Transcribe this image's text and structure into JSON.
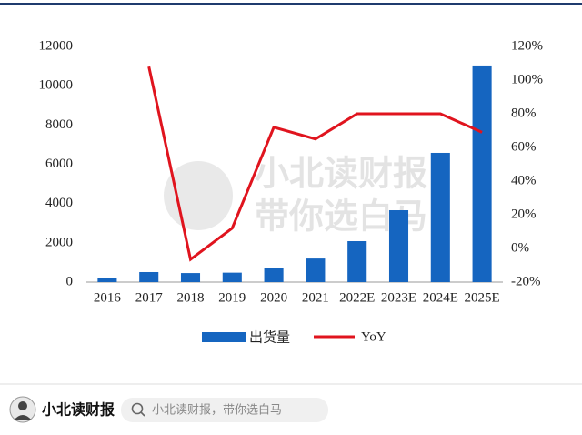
{
  "chart_data": {
    "type": "bar",
    "categories": [
      "2016",
      "2017",
      "2018",
      "2019",
      "2020",
      "2021",
      "2022E",
      "2023E",
      "2024E",
      "2025E"
    ],
    "series": [
      {
        "name": "出货量",
        "type": "bar",
        "color": "#1565c0",
        "values": [
          230,
          510,
          460,
          480,
          740,
          1200,
          2085,
          3660,
          6580,
          11030
        ]
      },
      {
        "name": "YoY",
        "type": "line",
        "color": "#e0141e",
        "axis": "y2",
        "values": [
          null,
          108,
          -6.5,
          12,
          72,
          65,
          80,
          80,
          80,
          69
        ]
      }
    ],
    "ylim": [
      0,
      12000
    ],
    "yticks": [
      0,
      2000,
      4000,
      6000,
      8000,
      10000,
      12000
    ],
    "y2lim": [
      -20,
      120
    ],
    "y2ticks": [
      {
        "value": -20,
        "label": "-20%"
      },
      {
        "value": 0,
        "label": "0%"
      },
      {
        "value": 20,
        "label": "20%"
      },
      {
        "value": 40,
        "label": "40%"
      },
      {
        "value": 60,
        "label": "60%"
      },
      {
        "value": 80,
        "label": "80%"
      },
      {
        "value": 100,
        "label": "100%"
      },
      {
        "value": 120,
        "label": "120%"
      }
    ]
  },
  "watermark": [
    "小北读财报",
    "带你选白马"
  ],
  "footer": {
    "brand": "小北读财报",
    "search": "小北读财报，带你选白马"
  }
}
